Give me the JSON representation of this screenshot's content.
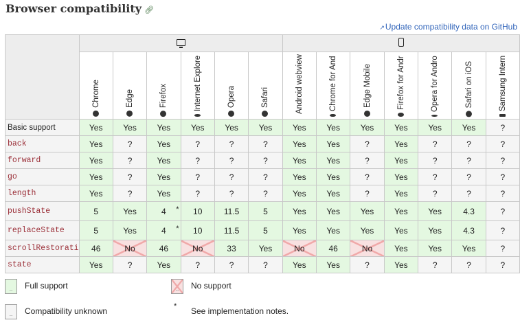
{
  "header": {
    "title": "Browser compatibility",
    "github_link": "Update compatibility data on GitHub"
  },
  "platforms": [
    {
      "name": "desktop",
      "icon": "desktop-icon"
    },
    {
      "name": "mobile",
      "icon": "mobile-icon"
    }
  ],
  "browsers": [
    {
      "label": "Chrome",
      "icon": "chrome-icon"
    },
    {
      "label": "Edge",
      "icon": "edge-icon"
    },
    {
      "label": "Firefox",
      "icon": "firefox-icon"
    },
    {
      "label": "Internet Explore",
      "icon": "ie-icon"
    },
    {
      "label": "Opera",
      "icon": "opera-icon"
    },
    {
      "label": "Safari",
      "icon": "safari-icon"
    },
    {
      "label": "Android webview",
      "icon": "android-icon"
    },
    {
      "label": "Chrome for And",
      "icon": "chrome-icon"
    },
    {
      "label": "Edge Mobile",
      "icon": "edge-icon"
    },
    {
      "label": "Firefox for Andr",
      "icon": "firefox-icon"
    },
    {
      "label": "Opera for Andro",
      "icon": "opera-icon"
    },
    {
      "label": "Safari on iOS",
      "icon": "safari-icon"
    },
    {
      "label": "Samsung Intern",
      "icon": "samsung-icon"
    }
  ],
  "features": [
    {
      "name": "Basic support",
      "code": false,
      "cells": [
        {
          "v": "Yes",
          "s": "full"
        },
        {
          "v": "Yes",
          "s": "full"
        },
        {
          "v": "Yes",
          "s": "full"
        },
        {
          "v": "Yes",
          "s": "full"
        },
        {
          "v": "Yes",
          "s": "full"
        },
        {
          "v": "Yes",
          "s": "full"
        },
        {
          "v": "Yes",
          "s": "full"
        },
        {
          "v": "Yes",
          "s": "full"
        },
        {
          "v": "Yes",
          "s": "full"
        },
        {
          "v": "Yes",
          "s": "full"
        },
        {
          "v": "Yes",
          "s": "full"
        },
        {
          "v": "Yes",
          "s": "full"
        },
        {
          "v": "?",
          "s": "unk"
        }
      ]
    },
    {
      "name": "back",
      "code": true,
      "cells": [
        {
          "v": "Yes",
          "s": "full"
        },
        {
          "v": "?",
          "s": "unk"
        },
        {
          "v": "Yes",
          "s": "full"
        },
        {
          "v": "?",
          "s": "unk"
        },
        {
          "v": "?",
          "s": "unk"
        },
        {
          "v": "?",
          "s": "unk"
        },
        {
          "v": "Yes",
          "s": "full"
        },
        {
          "v": "Yes",
          "s": "full"
        },
        {
          "v": "?",
          "s": "unk"
        },
        {
          "v": "Yes",
          "s": "full"
        },
        {
          "v": "?",
          "s": "unk"
        },
        {
          "v": "?",
          "s": "unk"
        },
        {
          "v": "?",
          "s": "unk"
        }
      ]
    },
    {
      "name": "forward",
      "code": true,
      "cells": [
        {
          "v": "Yes",
          "s": "full"
        },
        {
          "v": "?",
          "s": "unk"
        },
        {
          "v": "Yes",
          "s": "full"
        },
        {
          "v": "?",
          "s": "unk"
        },
        {
          "v": "?",
          "s": "unk"
        },
        {
          "v": "?",
          "s": "unk"
        },
        {
          "v": "Yes",
          "s": "full"
        },
        {
          "v": "Yes",
          "s": "full"
        },
        {
          "v": "?",
          "s": "unk"
        },
        {
          "v": "Yes",
          "s": "full"
        },
        {
          "v": "?",
          "s": "unk"
        },
        {
          "v": "?",
          "s": "unk"
        },
        {
          "v": "?",
          "s": "unk"
        }
      ]
    },
    {
      "name": "go",
      "code": true,
      "cells": [
        {
          "v": "Yes",
          "s": "full"
        },
        {
          "v": "?",
          "s": "unk"
        },
        {
          "v": "Yes",
          "s": "full"
        },
        {
          "v": "?",
          "s": "unk"
        },
        {
          "v": "?",
          "s": "unk"
        },
        {
          "v": "?",
          "s": "unk"
        },
        {
          "v": "Yes",
          "s": "full"
        },
        {
          "v": "Yes",
          "s": "full"
        },
        {
          "v": "?",
          "s": "unk"
        },
        {
          "v": "Yes",
          "s": "full"
        },
        {
          "v": "?",
          "s": "unk"
        },
        {
          "v": "?",
          "s": "unk"
        },
        {
          "v": "?",
          "s": "unk"
        }
      ]
    },
    {
      "name": "length",
      "code": true,
      "cells": [
        {
          "v": "Yes",
          "s": "full"
        },
        {
          "v": "?",
          "s": "unk"
        },
        {
          "v": "Yes",
          "s": "full"
        },
        {
          "v": "?",
          "s": "unk"
        },
        {
          "v": "?",
          "s": "unk"
        },
        {
          "v": "?",
          "s": "unk"
        },
        {
          "v": "Yes",
          "s": "full"
        },
        {
          "v": "Yes",
          "s": "full"
        },
        {
          "v": "?",
          "s": "unk"
        },
        {
          "v": "Yes",
          "s": "full"
        },
        {
          "v": "?",
          "s": "unk"
        },
        {
          "v": "?",
          "s": "unk"
        },
        {
          "v": "?",
          "s": "unk"
        }
      ]
    },
    {
      "name": "pushState",
      "code": true,
      "cells": [
        {
          "v": "5",
          "s": "full"
        },
        {
          "v": "Yes",
          "s": "full"
        },
        {
          "v": "4",
          "s": "full",
          "note": true
        },
        {
          "v": "10",
          "s": "full"
        },
        {
          "v": "11.5",
          "s": "full"
        },
        {
          "v": "5",
          "s": "full"
        },
        {
          "v": "Yes",
          "s": "full"
        },
        {
          "v": "Yes",
          "s": "full"
        },
        {
          "v": "Yes",
          "s": "full"
        },
        {
          "v": "Yes",
          "s": "full"
        },
        {
          "v": "Yes",
          "s": "full"
        },
        {
          "v": "4.3",
          "s": "full"
        },
        {
          "v": "?",
          "s": "unk"
        }
      ]
    },
    {
      "name": "replaceState",
      "code": true,
      "cells": [
        {
          "v": "5",
          "s": "full"
        },
        {
          "v": "Yes",
          "s": "full"
        },
        {
          "v": "4",
          "s": "full",
          "note": true
        },
        {
          "v": "10",
          "s": "full"
        },
        {
          "v": "11.5",
          "s": "full"
        },
        {
          "v": "5",
          "s": "full"
        },
        {
          "v": "Yes",
          "s": "full"
        },
        {
          "v": "Yes",
          "s": "full"
        },
        {
          "v": "Yes",
          "s": "full"
        },
        {
          "v": "Yes",
          "s": "full"
        },
        {
          "v": "Yes",
          "s": "full"
        },
        {
          "v": "4.3",
          "s": "full"
        },
        {
          "v": "?",
          "s": "unk"
        }
      ]
    },
    {
      "name": "scrollRestorati",
      "code": true,
      "cells": [
        {
          "v": "46",
          "s": "full"
        },
        {
          "v": "No",
          "s": "none"
        },
        {
          "v": "46",
          "s": "full"
        },
        {
          "v": "No",
          "s": "none"
        },
        {
          "v": "33",
          "s": "full"
        },
        {
          "v": "Yes",
          "s": "full"
        },
        {
          "v": "No",
          "s": "none"
        },
        {
          "v": "46",
          "s": "full"
        },
        {
          "v": "No",
          "s": "none"
        },
        {
          "v": "Yes",
          "s": "full"
        },
        {
          "v": "Yes",
          "s": "full"
        },
        {
          "v": "Yes",
          "s": "full"
        },
        {
          "v": "?",
          "s": "unk"
        }
      ]
    },
    {
      "name": "state",
      "code": true,
      "cells": [
        {
          "v": "Yes",
          "s": "full"
        },
        {
          "v": "?",
          "s": "unk"
        },
        {
          "v": "Yes",
          "s": "full"
        },
        {
          "v": "?",
          "s": "unk"
        },
        {
          "v": "?",
          "s": "unk"
        },
        {
          "v": "?",
          "s": "unk"
        },
        {
          "v": "Yes",
          "s": "full"
        },
        {
          "v": "Yes",
          "s": "full"
        },
        {
          "v": "?",
          "s": "unk"
        },
        {
          "v": "Yes",
          "s": "full"
        },
        {
          "v": "?",
          "s": "unk"
        },
        {
          "v": "?",
          "s": "unk"
        },
        {
          "v": "?",
          "s": "unk"
        }
      ]
    }
  ],
  "legend": {
    "full": "Full support",
    "none": "No support",
    "unknown": "Compatibility unknown",
    "notes": "See implementation notes.",
    "note_marker": "*",
    "swatch_mark": ".."
  },
  "colors": {
    "full": "#e4f8e1",
    "none": "#f8e1e1",
    "unknown": "#f5f5f5",
    "code_text": "#9b2f38",
    "link": "#3366bb"
  }
}
